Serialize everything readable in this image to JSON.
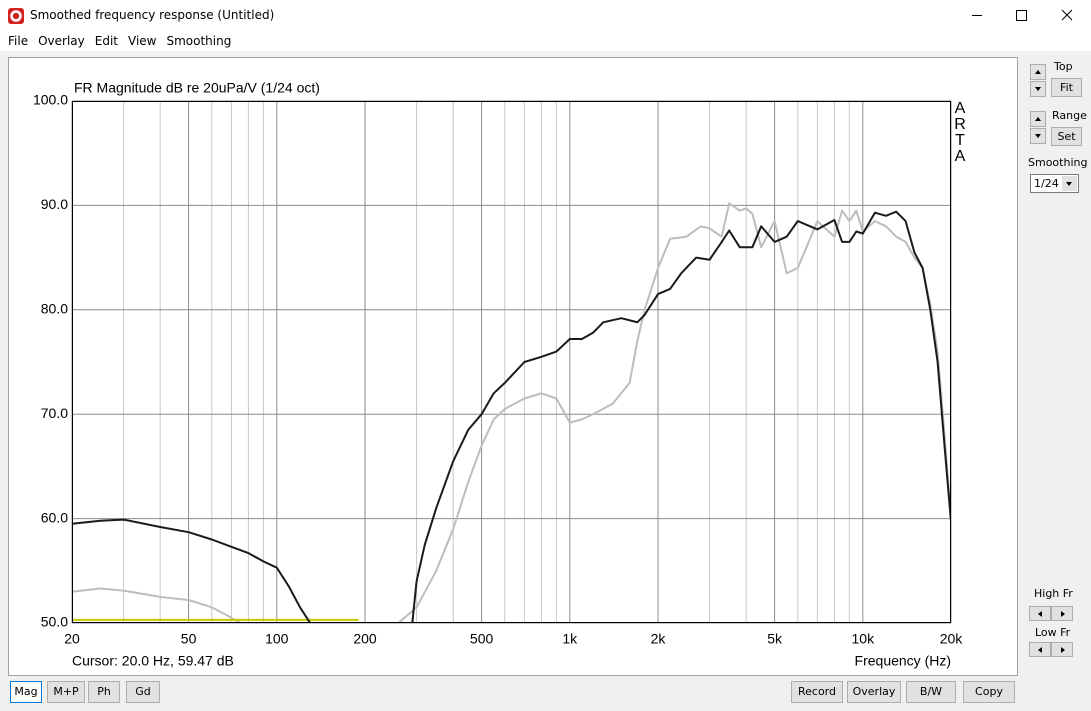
{
  "window": {
    "title": "Smoothed frequency response (Untitled)",
    "menu": [
      "File",
      "Overlay",
      "Edit",
      "View",
      "Smoothing"
    ],
    "controls": {
      "top": "Top",
      "fit": "Fit",
      "range": "Range",
      "set": "Set",
      "smoothing_label": "Smoothing",
      "smoothing_value": "1/24",
      "high_fr": "High Fr",
      "low_fr": "Low Fr"
    },
    "bottom_buttons": {
      "left": [
        "Mag",
        "M+P",
        "Ph",
        "Gd"
      ],
      "right": [
        "Record",
        "Overlay",
        "B/W",
        "Copy"
      ]
    }
  },
  "chart_data": {
    "type": "line",
    "title": "FR Magnitude dB re 20uPa/V (1/24 oct)",
    "x_label": "Frequency (Hz)",
    "cursor": "Cursor: 20.0 Hz, 59.47 dB",
    "watermark": "ARTA",
    "log_x": true,
    "xlim": [
      20,
      20000
    ],
    "xticks": [
      20,
      50,
      100,
      200,
      500,
      {
        "value": 1000,
        "label": "1k"
      },
      {
        "value": 2000,
        "label": "2k"
      },
      {
        "value": 5000,
        "label": "5k"
      },
      {
        "value": 10000,
        "label": "10k"
      },
      {
        "value": 20000,
        "label": "20k"
      }
    ],
    "x_minor_grid": [
      30,
      40,
      60,
      70,
      80,
      90,
      300,
      400,
      600,
      700,
      800,
      900,
      3000,
      4000,
      6000,
      7000,
      8000,
      9000
    ],
    "ylim": [
      50,
      100
    ],
    "yticks": [
      {
        "value": 50,
        "label": "50.0"
      },
      {
        "value": 60,
        "label": "60.0"
      },
      {
        "value": 70,
        "label": "70.0"
      },
      {
        "value": 80,
        "label": "80.0"
      },
      {
        "value": 90,
        "label": "90.0"
      },
      {
        "value": 100,
        "label": "100.0"
      }
    ],
    "grid": true,
    "series": [
      {
        "color": "#bdbdbd",
        "x": [
          20,
          25,
          30,
          40,
          50,
          60,
          70,
          75,
          150,
          260,
          300,
          350,
          400,
          450,
          500,
          550,
          600,
          700,
          800,
          900,
          1000,
          1100,
          1200,
          1400,
          1600,
          1700,
          1800,
          2000,
          2200,
          2500,
          2800,
          3000,
          3300,
          3500,
          3800,
          4000,
          4200,
          4500,
          5000,
          5500,
          6000,
          7000,
          8000,
          8500,
          9000,
          9500,
          10000,
          11000,
          12000,
          13000,
          14000,
          15000,
          16000,
          17000,
          18000,
          19000,
          20000
        ],
        "values": [
          53.0,
          53.3,
          53.1,
          52.5,
          52.2,
          51.5,
          50.5,
          50.0,
          null,
          50.0,
          51.5,
          55,
          59,
          63.5,
          67,
          69.5,
          70.5,
          71.5,
          72.0,
          71.5,
          69.2,
          69.5,
          70.0,
          71,
          73,
          77,
          80,
          84,
          86.8,
          87,
          88,
          87.8,
          87,
          90.2,
          89.5,
          89.7,
          89.2,
          86,
          88.5,
          83.5,
          84,
          88.5,
          87,
          89.5,
          88.5,
          89.5,
          87.5,
          88.5,
          88,
          87,
          86.5,
          85,
          84,
          80.5,
          76,
          68,
          60
        ]
      },
      {
        "color": "#c8c800",
        "x": [
          20,
          190
        ],
        "values": [
          50.3,
          50.3
        ]
      },
      {
        "color": "#1a1a1a",
        "x": [
          20,
          25,
          30,
          40,
          50,
          60,
          70,
          80,
          90,
          100,
          110,
          120,
          130,
          200,
          290,
          300,
          320,
          350,
          400,
          450,
          500,
          550,
          600,
          700,
          800,
          900,
          1000,
          1100,
          1200,
          1300,
          1500,
          1700,
          1800,
          2000,
          2200,
          2400,
          2700,
          3000,
          3300,
          3500,
          3800,
          4200,
          4500,
          5000,
          5500,
          6000,
          7000,
          8000,
          8500,
          9000,
          9500,
          10000,
          11000,
          12000,
          13000,
          14000,
          15000,
          16000,
          17000,
          18000,
          19000,
          20000
        ],
        "values": [
          59.5,
          59.8,
          59.9,
          59.2,
          58.7,
          58.0,
          57.3,
          56.7,
          55.9,
          55.3,
          53.5,
          51.5,
          50.0,
          null,
          50.0,
          54,
          57.5,
          61,
          65.5,
          68.5,
          70,
          72,
          73,
          75,
          75.5,
          76,
          77.2,
          77.2,
          77.8,
          78.8,
          79.2,
          78.8,
          79.5,
          81.5,
          82,
          83.5,
          85,
          84.8,
          86.5,
          87.6,
          86,
          86,
          88,
          86.5,
          87,
          88.5,
          87.7,
          88.6,
          86.5,
          86.5,
          87.5,
          87.3,
          89.3,
          89,
          89.4,
          88.5,
          85.5,
          84,
          80,
          75,
          67,
          59.7
        ]
      }
    ]
  }
}
